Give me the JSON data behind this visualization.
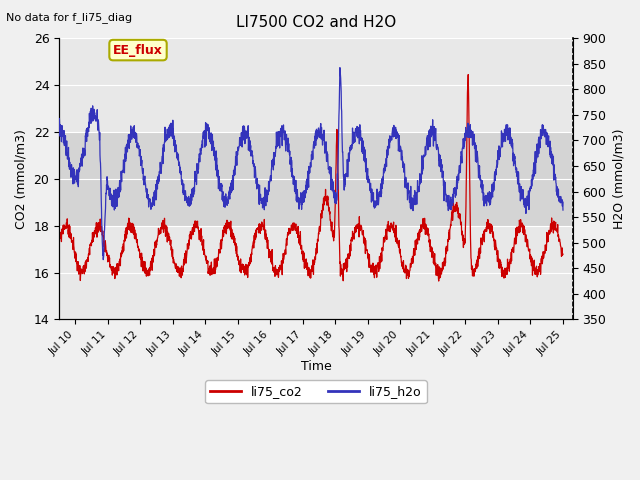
{
  "title": "LI7500 CO2 and H2O",
  "top_left_text": "No data for f_li75_diag",
  "xlabel": "Time",
  "ylabel_left": "CO2 (mmol/m3)",
  "ylabel_right": "H2O (mmol/m3)",
  "ylim_left": [
    14,
    26
  ],
  "ylim_right": [
    350,
    900
  ],
  "yticks_left": [
    14,
    16,
    18,
    20,
    22,
    24,
    26
  ],
  "yticks_right": [
    350,
    400,
    450,
    500,
    550,
    600,
    650,
    700,
    750,
    800,
    850,
    900
  ],
  "color_co2": "#cc0000",
  "color_h2o": "#3333bb",
  "legend_labels": [
    "li75_co2",
    "li75_h2o"
  ],
  "plot_bg_color": "#e8e8e8",
  "band_lo": 18,
  "band_hi": 22,
  "band_color": "#d3d3d3",
  "annotation_box_text": "EE_flux",
  "annotation_box_facecolor": "#ffffcc",
  "annotation_box_edgecolor": "#aaaa00",
  "annotation_text_color": "#cc0000",
  "figsize": [
    6.4,
    4.8
  ],
  "dpi": 100
}
